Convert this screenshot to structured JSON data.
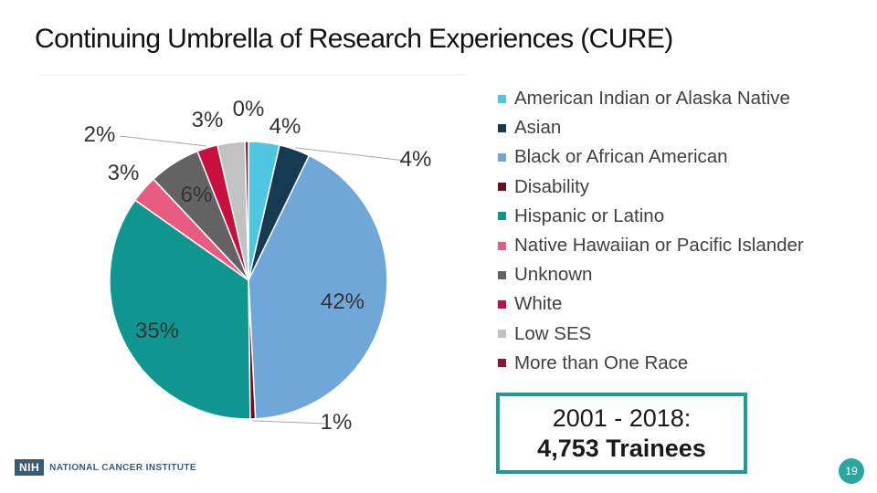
{
  "title": "Continuing Umbrella of Research Experiences (CURE)",
  "chart_data": {
    "type": "pie",
    "title": "Continuing Umbrella of Research Experiences (CURE)",
    "start_angle_deg": 0,
    "direction": "clockwise",
    "slices": [
      {
        "name": "American Indian or Alaska Native",
        "value": 3.6,
        "label": "4%",
        "color": "#4fc6e0"
      },
      {
        "name": "Asian",
        "value": 3.6,
        "label": "4%",
        "color": "#163a52"
      },
      {
        "name": "Black or African American",
        "value": 42,
        "label": "42%",
        "color": "#6fa8d8"
      },
      {
        "name": "Disability",
        "value": 0.6,
        "label": "1%",
        "color": "#6b0f24"
      },
      {
        "name": "Hispanic or Latino",
        "value": 35,
        "label": "35%",
        "color": "#0f9690"
      },
      {
        "name": "Native Hawaiian or Pacific Islander",
        "value": 3.2,
        "label": "3%",
        "color": "#ea5b82"
      },
      {
        "name": "Unknown",
        "value": 6,
        "label": "6%",
        "color": "#636363"
      },
      {
        "name": "White",
        "value": 2.4,
        "label": "2%",
        "color": "#c8103e"
      },
      {
        "name": "Low SES",
        "value": 3.2,
        "label": "3%",
        "color": "#c2c2c2"
      },
      {
        "name": "More than One Race",
        "value": 0.4,
        "label": "0%",
        "color": "#8c1535"
      }
    ]
  },
  "callout": {
    "line1": "2001 - 2018:",
    "line2": "4,753 Trainees",
    "border_color": "#1d9b96"
  },
  "footer": {
    "logo_mark": "NIH",
    "logo_name": "NATIONAL CANCER INSTITUTE",
    "page_number": "19"
  }
}
